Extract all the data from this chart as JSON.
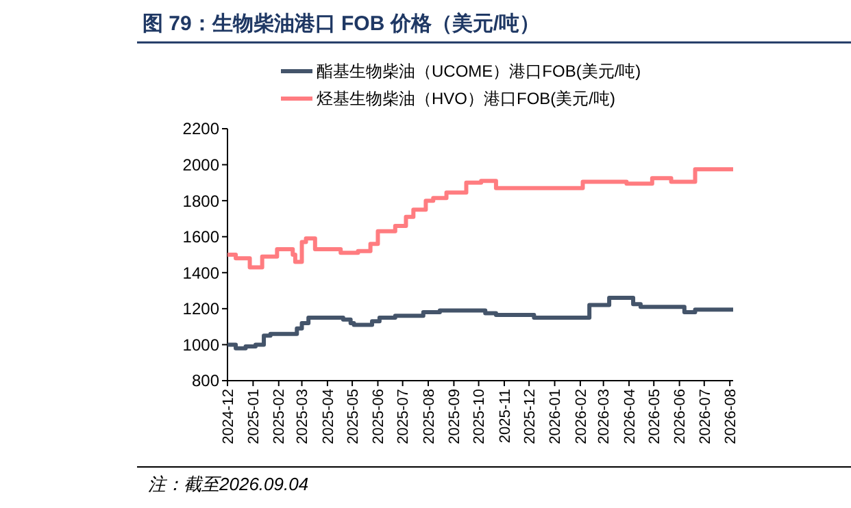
{
  "chart_data": {
    "type": "step",
    "title": "图 79：生物柴油港口 FOB 价格（美元/吨）",
    "annotations": [
      "注：截至2026.09.04"
    ],
    "legend": "top",
    "grid": false,
    "xlim": [
      "2024-12-01",
      "2026-08-05"
    ],
    "xticks": [
      "2024-12",
      "2025-01",
      "2025-02",
      "2025-03",
      "2025-04",
      "2025-05",
      "2025-06",
      "2025-07",
      "2025-08",
      "2025-09",
      "2025-10",
      "2025-11",
      "2025-12",
      "2026-01",
      "2026-02",
      "2026-03",
      "2026-04",
      "2026-05",
      "2026-06",
      "2026-07",
      "2026-08"
    ],
    "ylim": [
      800,
      2200
    ],
    "yticks": [
      800,
      1000,
      1200,
      1400,
      1600,
      1800,
      2000,
      2200
    ],
    "series": [
      {
        "name": "酯基生物柴油（UCOME）港口FOB(美元/吨)",
        "color": "#44546a",
        "x": [
          "2024-12-01",
          "2024-12-11",
          "2024-12-23",
          "2025-01-04",
          "2025-01-14",
          "2025-01-22",
          "2025-02-23",
          "2025-03-01",
          "2025-03-09",
          "2025-04-20",
          "2025-04-29",
          "2025-05-03",
          "2025-05-25",
          "2025-06-03",
          "2025-06-22",
          "2025-07-26",
          "2025-08-15",
          "2025-10-09",
          "2025-10-22",
          "2025-12-07",
          "2026-02-12",
          "2026-03-08",
          "2026-04-06",
          "2026-04-15",
          "2026-06-07",
          "2026-06-20",
          "2026-08-05"
        ],
        "values": [
          1000,
          980,
          990,
          1000,
          1050,
          1060,
          1090,
          1120,
          1150,
          1140,
          1120,
          1110,
          1130,
          1150,
          1160,
          1180,
          1190,
          1175,
          1165,
          1150,
          1220,
          1260,
          1225,
          1210,
          1180,
          1195,
          1195
        ]
      },
      {
        "name": "烃基生物柴油（HVO）港口FOB(美元/吨)",
        "color": "#ff7c80",
        "x": [
          "2024-12-01",
          "2024-12-11",
          "2024-12-28",
          "2025-01-12",
          "2025-01-30",
          "2025-02-18",
          "2025-02-21",
          "2025-03-01",
          "2025-03-06",
          "2025-03-17",
          "2025-04-17",
          "2025-05-08",
          "2025-05-23",
          "2025-06-01",
          "2025-06-22",
          "2025-07-05",
          "2025-07-14",
          "2025-07-29",
          "2025-08-07",
          "2025-08-23",
          "2025-09-16",
          "2025-10-04",
          "2025-10-22",
          "2026-02-04",
          "2026-03-29",
          "2026-04-29",
          "2026-05-22",
          "2026-06-20",
          "2026-08-05"
        ],
        "values": [
          1500,
          1480,
          1430,
          1490,
          1530,
          1500,
          1460,
          1570,
          1590,
          1530,
          1510,
          1520,
          1560,
          1630,
          1660,
          1710,
          1750,
          1800,
          1815,
          1845,
          1900,
          1910,
          1870,
          1905,
          1895,
          1925,
          1905,
          1975,
          1975
        ]
      }
    ]
  }
}
